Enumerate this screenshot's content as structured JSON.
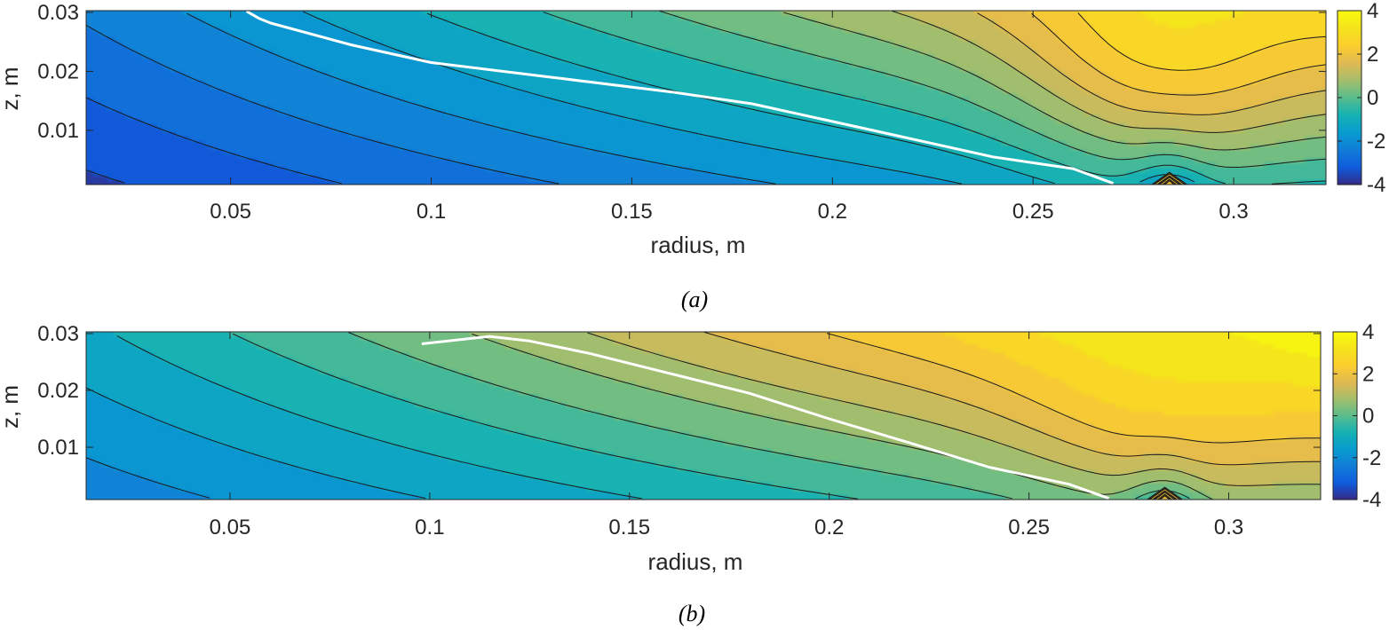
{
  "chart_data": [
    {
      "type": "contour",
      "caption": "(a)",
      "xlabel": "radius, m",
      "ylabel": "z, m",
      "xlim": [
        0.014,
        0.323
      ],
      "ylim": [
        0.0008,
        0.0303
      ],
      "xticks": [
        0.05,
        0.1,
        0.15,
        0.2,
        0.25,
        0.3
      ],
      "xtick_labels": [
        "0.05",
        "0.1",
        "0.15",
        "0.2",
        "0.25",
        "0.3"
      ],
      "yticks": [
        0.01,
        0.02,
        0.03
      ],
      "ytick_labels": [
        "0.01",
        "0.02",
        "0.03"
      ],
      "colorbar": {
        "range": [
          -4,
          4
        ],
        "ticks": [
          -4,
          -2,
          0,
          2,
          4
        ],
        "tick_labels": [
          "-4",
          "-2",
          "0",
          "2",
          "4"
        ],
        "colormap": "parula"
      },
      "field": {
        "peak": {
          "r": 0.284,
          "z": 0.028,
          "value": 2.7
        },
        "left_value": -3.6,
        "bottom_value": -1.0,
        "singularity": {
          "r": 0.284,
          "z": 0.001
        }
      },
      "levels": [
        -3.5,
        -3,
        -2.5,
        -2,
        -1.5,
        -1,
        -0.5,
        0,
        0.5,
        1,
        1.5,
        2,
        2.5
      ],
      "highlight_contour": {
        "color": "#ffffff",
        "r": [
          0.054,
          0.057,
          0.06,
          0.08,
          0.1,
          0.13,
          0.16,
          0.18,
          0.2,
          0.22,
          0.24,
          0.26,
          0.27
        ],
        "z": [
          0.0302,
          0.029,
          0.0282,
          0.0245,
          0.0215,
          0.019,
          0.0165,
          0.0145,
          0.0115,
          0.0085,
          0.0055,
          0.0035,
          0.001
        ]
      }
    },
    {
      "type": "contour",
      "caption": "(b)",
      "xlabel": "radius, m",
      "ylabel": "z, m",
      "xlim": [
        0.014,
        0.323
      ],
      "ylim": [
        0.0008,
        0.0303
      ],
      "xticks": [
        0.05,
        0.1,
        0.15,
        0.2,
        0.25,
        0.3
      ],
      "xtick_labels": [
        "0.05",
        "0.1",
        "0.15",
        "0.2",
        "0.25",
        "0.3"
      ],
      "yticks": [
        0.01,
        0.02,
        0.03
      ],
      "ytick_labels": [
        "0.01",
        "0.02",
        "0.03"
      ],
      "colorbar": {
        "range": [
          -4,
          4
        ],
        "ticks": [
          -4,
          -2,
          0,
          2,
          4
        ],
        "tick_labels": [
          "-4",
          "-2",
          "0",
          "2",
          "4"
        ],
        "colormap": "parula"
      },
      "field": {
        "peak": {
          "r": 0.284,
          "z": 0.028,
          "value": 2.4
        },
        "left_value": -2.3,
        "bottom_value": -1.0,
        "singularity": {
          "r": 0.284,
          "z": 0.001
        }
      },
      "levels": [
        -2,
        -1.5,
        -1,
        -0.5,
        0,
        0.5,
        1,
        1.5,
        2
      ],
      "highlight_contour": {
        "color": "#ffffff",
        "r": [
          0.098,
          0.115,
          0.125,
          0.14,
          0.16,
          0.18,
          0.2,
          0.22,
          0.24,
          0.26,
          0.27
        ],
        "z": [
          0.0282,
          0.0295,
          0.0287,
          0.0265,
          0.023,
          0.0195,
          0.015,
          0.0108,
          0.0065,
          0.0035,
          0.001
        ]
      }
    }
  ]
}
